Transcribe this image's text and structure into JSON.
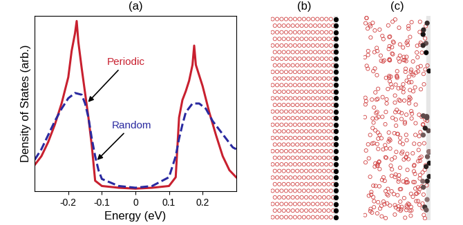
{
  "chart_data": {
    "type": "line",
    "title": "(a)",
    "x_label": "Energy (eV)",
    "y_label": "Density of States (arb.)",
    "xlim": [
      -0.3,
      0.3
    ],
    "xticks": [
      -0.2,
      -0.1,
      0,
      0.1,
      0.2
    ],
    "ylim": [
      0,
      1.0
    ],
    "tick_labels": "x",
    "series": [
      {
        "name": "Periodic",
        "color": "#c8202f",
        "line_style": "solid",
        "x": [
          -0.3,
          -0.28,
          -0.26,
          -0.24,
          -0.22,
          -0.2,
          -0.19,
          -0.18,
          -0.175,
          -0.17,
          -0.16,
          -0.15,
          -0.14,
          -0.13,
          -0.12,
          -0.1,
          -0.05,
          0,
          0.05,
          0.1,
          0.12,
          0.13,
          0.14,
          0.15,
          0.16,
          0.17,
          0.175,
          0.18,
          0.19,
          0.2,
          0.22,
          0.24,
          0.26,
          0.28,
          0.3
        ],
        "values": [
          0.15,
          0.2,
          0.28,
          0.38,
          0.5,
          0.65,
          0.8,
          0.9,
          0.97,
          0.85,
          0.7,
          0.56,
          0.42,
          0.26,
          0.06,
          0.03,
          0.02,
          0.015,
          0.02,
          0.03,
          0.08,
          0.42,
          0.52,
          0.57,
          0.63,
          0.72,
          0.83,
          0.72,
          0.66,
          0.6,
          0.45,
          0.32,
          0.2,
          0.12,
          0.08
        ]
      },
      {
        "name": "Random",
        "color": "#2a2aa0",
        "line_style": "dashed",
        "x": [
          -0.3,
          -0.28,
          -0.26,
          -0.24,
          -0.22,
          -0.2,
          -0.18,
          -0.16,
          -0.15,
          -0.14,
          -0.13,
          -0.12,
          -0.11,
          -0.1,
          -0.05,
          0,
          0.05,
          0.1,
          0.12,
          0.13,
          0.14,
          0.15,
          0.17,
          0.19,
          0.21,
          0.23,
          0.25,
          0.27,
          0.29,
          0.3
        ],
        "values": [
          0.18,
          0.24,
          0.32,
          0.4,
          0.47,
          0.53,
          0.56,
          0.55,
          0.5,
          0.42,
          0.3,
          0.2,
          0.12,
          0.07,
          0.03,
          0.02,
          0.03,
          0.08,
          0.2,
          0.3,
          0.38,
          0.45,
          0.5,
          0.5,
          0.47,
          0.4,
          0.35,
          0.3,
          0.25,
          0.24
        ]
      }
    ]
  },
  "panels": [
    {
      "title": "(b)"
    },
    {
      "title": "(c)"
    }
  ]
}
